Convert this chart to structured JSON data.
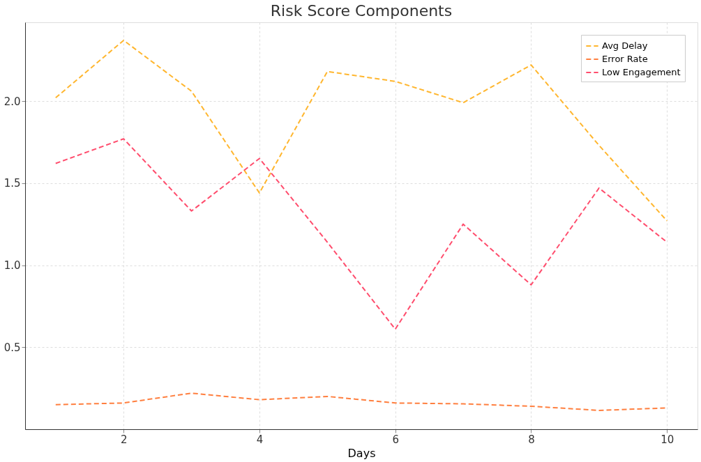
{
  "chart_data": {
    "type": "line",
    "title": "Risk Score Components",
    "xlabel": "Days",
    "x": [
      1,
      2,
      3,
      4,
      5,
      6,
      7,
      8,
      9,
      10
    ],
    "series": [
      {
        "name": "Avg Delay",
        "color": "#ffb62e",
        "values": [
          2.02,
          2.37,
          2.06,
          1.44,
          2.18,
          2.12,
          1.99,
          2.22,
          1.73,
          1.27
        ]
      },
      {
        "name": "Error Rate",
        "color": "#ff7f3f",
        "values": [
          0.15,
          0.16,
          0.22,
          0.18,
          0.2,
          0.16,
          0.155,
          0.14,
          0.115,
          0.13
        ]
      },
      {
        "name": "Low Engagement",
        "color": "#ff4d6d",
        "values": [
          1.62,
          1.77,
          1.33,
          1.65,
          1.14,
          0.61,
          1.25,
          0.88,
          1.47,
          1.14
        ]
      }
    ],
    "xlim": [
      0.55,
      10.45
    ],
    "ylim": [
      0.0,
      2.48
    ],
    "xticks": [
      2,
      4,
      6,
      8,
      10
    ],
    "yticks": [
      0.5,
      {
        "value": 1,
        "label": "1.0"
      },
      1.5,
      {
        "value": 2,
        "label": "2.0"
      }
    ],
    "grid": true,
    "legend": "top right",
    "line_style": "dashed",
    "marker": "none"
  }
}
